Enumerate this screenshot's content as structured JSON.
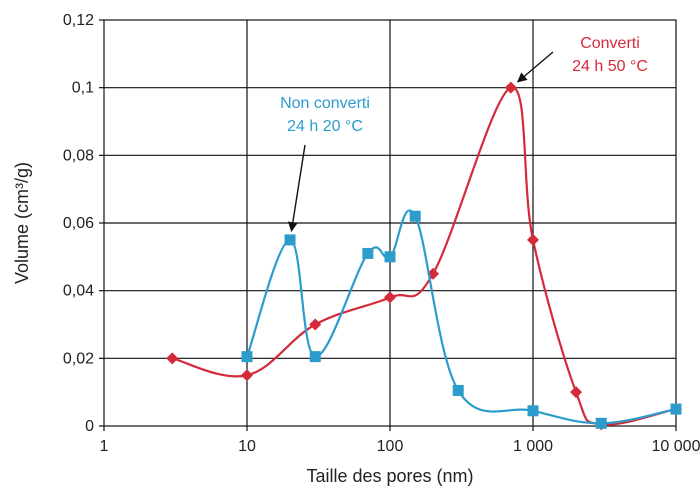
{
  "chart_data": {
    "type": "line",
    "title": "",
    "xlabel": "Taille des pores (nm)",
    "ylabel": "Volume (cm³/g)",
    "x_scale": "log",
    "xlim": [
      1,
      10000
    ],
    "ylim": [
      0,
      0.12
    ],
    "grid": true,
    "x_ticks": [
      {
        "value": 1,
        "label": "1"
      },
      {
        "value": 10,
        "label": "10"
      },
      {
        "value": 100,
        "label": "100"
      },
      {
        "value": 1000,
        "label": "1 000"
      },
      {
        "value": 10000,
        "label": "10 000"
      }
    ],
    "y_ticks": [
      {
        "value": 0,
        "label": "0"
      },
      {
        "value": 0.02,
        "label": "0,02"
      },
      {
        "value": 0.04,
        "label": "0,04"
      },
      {
        "value": 0.06,
        "label": "0,06"
      },
      {
        "value": 0.08,
        "label": "0,08"
      },
      {
        "value": 0.1,
        "label": "0,1"
      },
      {
        "value": 0.12,
        "label": "0,12"
      }
    ],
    "series": [
      {
        "name": "",
        "color": "#d42a3a",
        "marker": "diamond",
        "x": [
          3,
          10,
          30,
          100,
          200,
          700,
          1000,
          2000,
          3000,
          10000
        ],
        "y": [
          0.02,
          0.015,
          0.03,
          0.038,
          0.045,
          0.1,
          0.055,
          0.01,
          0.0005,
          0.005
        ]
      },
      {
        "name": "",
        "color": "#2b9ccb",
        "marker": "square",
        "x": [
          10,
          20,
          30,
          70,
          100,
          150,
          300,
          1000,
          3000,
          10000
        ],
        "y": [
          0.0205,
          0.055,
          0.0205,
          0.051,
          0.05,
          0.062,
          0.0105,
          0.0045,
          0.0008,
          0.005
        ]
      }
    ],
    "annotations": [
      {
        "lines": [
          "Converti",
          "24 h 50 °C"
        ],
        "color": "#d42a3a",
        "points_to": [
          700,
          0.1
        ]
      },
      {
        "lines": [
          "Non converti",
          "24 h 20 °C"
        ],
        "color": "#2b9ccb",
        "points_to": [
          20,
          0.055
        ]
      }
    ]
  }
}
